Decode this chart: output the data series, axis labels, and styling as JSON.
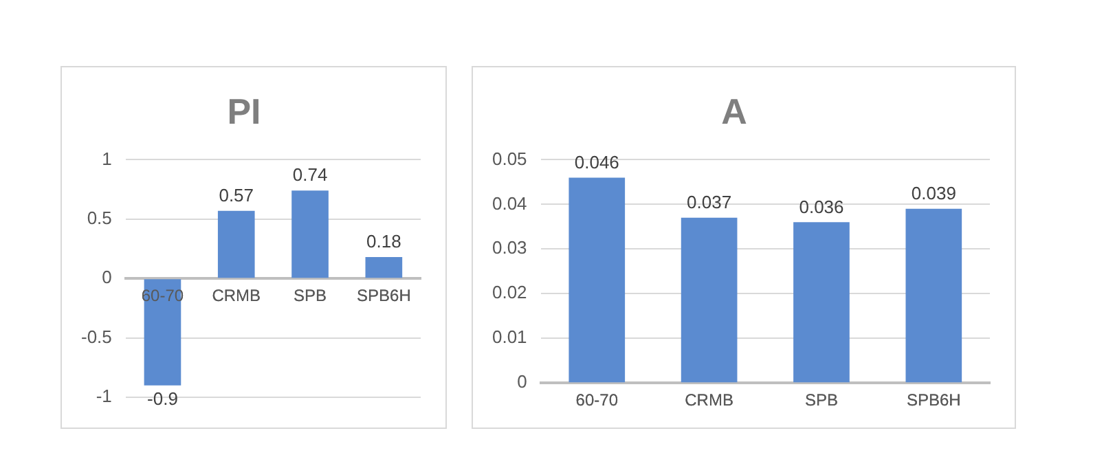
{
  "chart_data": [
    {
      "type": "bar",
      "title": "PI",
      "categories": [
        "60-70",
        "CRMB",
        "SPB",
        "SPB6H"
      ],
      "values": [
        -0.9,
        0.57,
        0.74,
        0.18
      ],
      "color": "#5b8bd0",
      "ylim": [
        -1,
        1
      ],
      "yticks": [
        -1,
        -0.5,
        0,
        0.5,
        1
      ],
      "grid": "y",
      "data_labels": true
    },
    {
      "type": "bar",
      "title": "A",
      "categories": [
        "60-70",
        "CRMB",
        "SPB",
        "SPB6H"
      ],
      "values": [
        0.046,
        0.037,
        0.036,
        0.039
      ],
      "color": "#5b8bd0",
      "ylim": [
        0,
        0.05
      ],
      "yticks": [
        0,
        0.01,
        0.02,
        0.03,
        0.04,
        0.05
      ],
      "grid": "y",
      "data_labels": true
    }
  ]
}
